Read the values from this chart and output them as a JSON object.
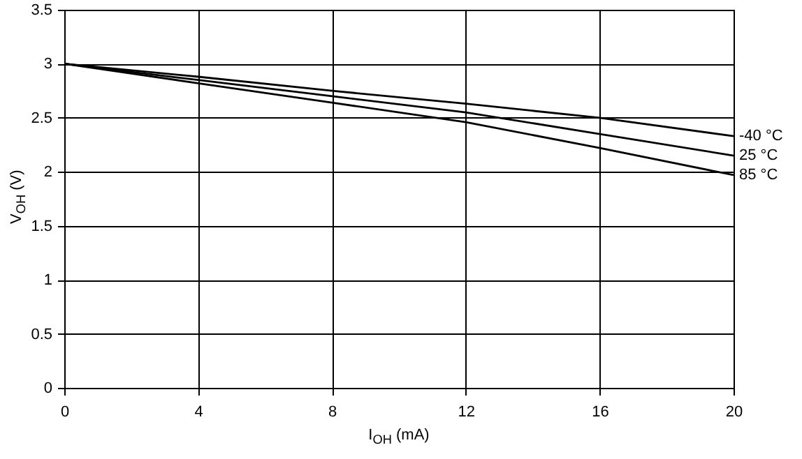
{
  "chart_data": {
    "type": "line",
    "xlabel": "I$_{OH}$ (mA)",
    "ylabel": "V$_{OH}$ (V)",
    "x": [
      0,
      4,
      8,
      12,
      16,
      20
    ],
    "series": [
      {
        "name": "-40 °C",
        "color": "#000000",
        "values": [
          3,
          2.88,
          2.75,
          2.63,
          2.5,
          2.33
        ]
      },
      {
        "name": "25 °C",
        "color": "#000000",
        "values": [
          3,
          2.85,
          2.7,
          2.55,
          2.35,
          2.15
        ]
      },
      {
        "name": "85 °C",
        "color": "#000000",
        "values": [
          3,
          2.82,
          2.64,
          2.46,
          2.22,
          1.97
        ]
      }
    ],
    "xlim": [
      0,
      20
    ],
    "xticks": [
      0,
      4,
      8,
      12,
      16,
      20
    ],
    "ylim": [
      0,
      3.5
    ],
    "yticks": [
      0,
      0.5,
      1,
      1.5,
      2,
      2.5,
      3,
      3.5
    ],
    "grid": true,
    "marker": "none",
    "line_style": "solid"
  }
}
